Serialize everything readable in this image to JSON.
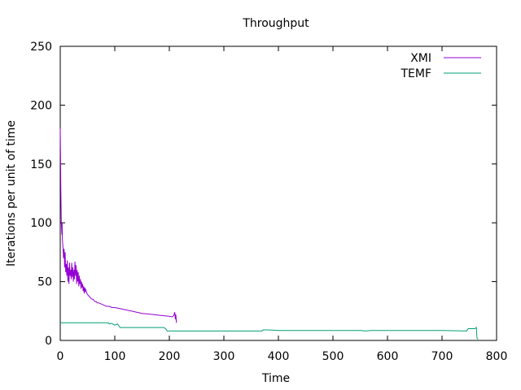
{
  "chart_data": {
    "type": "line",
    "title": "Throughput",
    "xlabel": "Time",
    "ylabel": "Iterations per unit of time",
    "xlim": [
      0,
      800
    ],
    "ylim": [
      0,
      250
    ],
    "xticks": [
      0,
      100,
      200,
      300,
      400,
      500,
      600,
      700,
      800
    ],
    "yticks": [
      0,
      50,
      100,
      150,
      200,
      250
    ],
    "grid": false,
    "legend": "top-right",
    "series": [
      {
        "name": "XMI",
        "color": "#9400d3",
        "x": [
          0,
          0.5,
          1,
          1.5,
          2,
          2.5,
          3,
          3.5,
          4,
          5,
          6,
          7,
          8,
          9,
          10,
          11,
          12,
          13,
          14,
          15,
          16,
          17,
          18,
          19,
          20,
          21,
          22,
          23,
          24,
          25,
          26,
          27,
          28,
          29,
          30,
          31,
          32,
          33,
          34,
          35,
          36,
          37,
          38,
          39,
          40,
          41,
          42,
          43,
          44,
          45,
          46,
          47,
          48,
          49,
          50,
          52,
          54,
          56,
          58,
          60,
          62,
          64,
          66,
          68,
          70,
          75,
          80,
          85,
          90,
          95,
          100,
          110,
          120,
          130,
          140,
          150,
          160,
          170,
          180,
          190,
          200,
          205,
          208,
          210,
          211,
          212,
          213
        ],
        "y": [
          180,
          160,
          130,
          115,
          100,
          95,
          90,
          100,
          85,
          80,
          70,
          78,
          62,
          75,
          58,
          65,
          55,
          68,
          50,
          62,
          48,
          66,
          55,
          60,
          52,
          66,
          54,
          62,
          50,
          60,
          52,
          67,
          55,
          64,
          48,
          60,
          50,
          58,
          46,
          55,
          48,
          52,
          44,
          50,
          45,
          48,
          42,
          46,
          40,
          45,
          42,
          43,
          41,
          40,
          39,
          38,
          37,
          36,
          35,
          35,
          34,
          33,
          33,
          32,
          32,
          31,
          30,
          29,
          29,
          28,
          28,
          27,
          26,
          25,
          24,
          23,
          22.5,
          22,
          21.5,
          21,
          20.5,
          20,
          21,
          24,
          18,
          22,
          15
        ]
      },
      {
        "name": "TEMF",
        "color": "#009e73",
        "x": [
          0,
          5,
          10,
          20,
          40,
          60,
          80,
          88,
          90,
          93,
          96,
          100,
          105,
          108,
          110,
          115,
          120,
          150,
          180,
          190,
          193,
          195,
          196,
          200,
          250,
          300,
          350,
          370,
          372,
          380,
          400,
          450,
          500,
          550,
          560,
          570,
          600,
          650,
          700,
          745,
          748,
          750,
          760,
          763,
          764,
          766
        ],
        "y": [
          15,
          15,
          15,
          15,
          15,
          15,
          15,
          15,
          14,
          14.5,
          14,
          13,
          14,
          12,
          11,
          11,
          11,
          11,
          11,
          11,
          10,
          9,
          8,
          8,
          8,
          8,
          8,
          8,
          9,
          9,
          8.5,
          8.5,
          8.5,
          8.5,
          8,
          8.5,
          8.5,
          8.5,
          8.5,
          8,
          10,
          10,
          10,
          11,
          2,
          1
        ]
      }
    ]
  }
}
